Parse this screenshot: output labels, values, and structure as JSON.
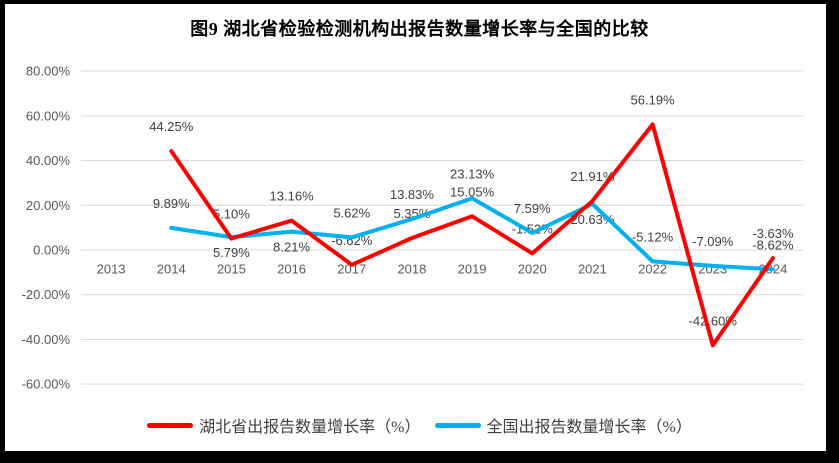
{
  "title": "图9 湖北省检验检测机构出报告数量增长率与全国的比较",
  "chart_data": {
    "type": "line",
    "title": "图9 湖北省检验检测机构出报告数量增长率与全国的比较",
    "categories": [
      "2013",
      "2014",
      "2015",
      "2016",
      "2017",
      "2018",
      "2019",
      "2020",
      "2021",
      "2022",
      "2023",
      "2024"
    ],
    "series": [
      {
        "key": "hubei",
        "name": "湖北省出报告数量增长率（%）",
        "color": "#FF0000",
        "values": [
          null,
          44.25,
          5.1,
          13.16,
          -6.62,
          5.35,
          15.05,
          -1.52,
          21.91,
          56.19,
          -42.6,
          -3.63
        ],
        "point_labels": [
          null,
          "44.25%",
          "5.10%",
          "13.16%",
          "-6.62%",
          "5.35%",
          "15.05%",
          "-1.52%",
          "21.91%",
          "56.19%",
          "-42.60%",
          "-3.63%"
        ],
        "label_sides": [
          null,
          "above",
          "above",
          "above",
          "above",
          "above",
          "above",
          "above",
          "above",
          "above",
          "above",
          "above"
        ]
      },
      {
        "key": "national",
        "name": "全国出报告数量增长率（%）",
        "color": "#00B0F0",
        "values": [
          null,
          9.89,
          5.79,
          8.21,
          5.62,
          13.83,
          23.13,
          7.59,
          20.63,
          -5.12,
          -7.09,
          -8.62
        ],
        "point_labels": [
          null,
          "9.89%",
          "5.79%",
          "8.21%",
          "5.62%",
          "13.83%",
          "23.13%",
          "7.59%",
          "20.63%",
          "-5.12%",
          "-7.09%",
          "-8.62%"
        ],
        "label_sides": [
          null,
          "above",
          "below",
          "below",
          "above",
          "above",
          "above",
          "above",
          "below",
          "above",
          "above",
          "above"
        ]
      }
    ],
    "y_axis": {
      "min": -60,
      "max": 80,
      "step": 20,
      "tick_values": [
        80,
        60,
        40,
        20,
        0,
        -20,
        -40,
        -60
      ],
      "tick_labels": [
        "80.00%",
        "60.00%",
        "40.00%",
        "20.00%",
        "0.00%",
        "-20.00%",
        "-40.00%",
        "-60.00%"
      ]
    },
    "xlabel": "",
    "ylabel": "",
    "grid": true,
    "legend_position": "bottom"
  },
  "legend": {
    "items": [
      {
        "label": "湖北省出报告数量增长率（%）",
        "color": "#FF0000"
      },
      {
        "label": "全国出报告数量增长率（%）",
        "color": "#00B0F0"
      }
    ]
  },
  "colors": {
    "frame": "#000000",
    "gridline": "#D9D9D9",
    "axis_text": "#595959",
    "data_label_text": "#404040",
    "background": "#FFFFFF"
  }
}
